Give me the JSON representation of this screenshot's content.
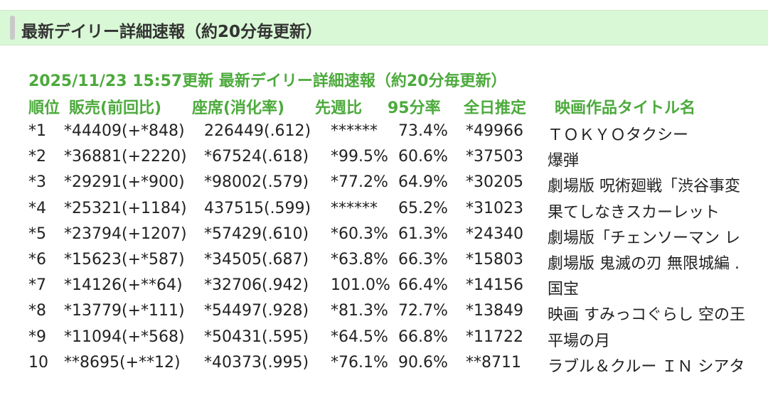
{
  "header": {
    "title": "最新デイリー詳細速報（約20分毎更新）"
  },
  "info": {
    "updated_line": "2025/11/23 15:57更新 最新デイリー詳細速報（約20分毎更新）"
  },
  "columns": {
    "rank": "順位",
    "sales": "販売(前回比)",
    "seats": "座席(消化率)",
    "wow": "先週比",
    "rate95": "95分率",
    "estimate": "全日推定",
    "title": "映画作品タイトル名"
  },
  "rows": [
    {
      "rank": "*1",
      "sales": "*44409(+*848)",
      "seats": "226449(.612)",
      "wow": "******",
      "rate95": "73.4%",
      "estimate": "*49966",
      "title": "ＴＯＫＹＯタクシー"
    },
    {
      "rank": "*2",
      "sales": "*36881(+2220)",
      "seats": "*67524(.618)",
      "wow": "*99.5%",
      "rate95": "60.6%",
      "estimate": "*37503",
      "title": "爆弾"
    },
    {
      "rank": "*3",
      "sales": "*29291(+*900)",
      "seats": "*98002(.579)",
      "wow": "*77.2%",
      "rate95": "64.9%",
      "estimate": "*30205",
      "title": "劇場版 呪術廻戦「渋谷事変"
    },
    {
      "rank": "*4",
      "sales": "*25321(+1184)",
      "seats": "437515(.599)",
      "wow": "******",
      "rate95": "65.2%",
      "estimate": "*31023",
      "title": "果てしなきスカーレット"
    },
    {
      "rank": "*5",
      "sales": "*23794(+1207)",
      "seats": "*57429(.610)",
      "wow": "*60.3%",
      "rate95": "61.3%",
      "estimate": "*24340",
      "title": "劇場版「チェンソーマン レ"
    },
    {
      "rank": "*6",
      "sales": "*15623(+*587)",
      "seats": "*34505(.687)",
      "wow": "*63.8%",
      "rate95": "66.3%",
      "estimate": "*15803",
      "title": "劇場版 鬼滅の刃 無限城編 ."
    },
    {
      "rank": "*7",
      "sales": "*14126(+**64)",
      "seats": "*32706(.942)",
      "wow": "101.0%",
      "rate95": "66.4%",
      "estimate": "*14156",
      "title": "国宝"
    },
    {
      "rank": "*8",
      "sales": "*13779(+*111)",
      "seats": "*54497(.928)",
      "wow": "*81.3%",
      "rate95": "72.7%",
      "estimate": "*13849",
      "title": "映画 すみっコぐらし 空の王"
    },
    {
      "rank": "*9",
      "sales": "*11094(+*568)",
      "seats": "*50431(.595)",
      "wow": "*64.5%",
      "rate95": "66.8%",
      "estimate": "*11722",
      "title": "平場の月"
    },
    {
      "rank": "10",
      "sales": "**8695(+**12)",
      "seats": "*40373(.995)",
      "wow": "*76.1%",
      "rate95": "90.6%",
      "estimate": "**8711",
      "title": "ラブル＆クルー ＩＮ シアタ"
    }
  ]
}
